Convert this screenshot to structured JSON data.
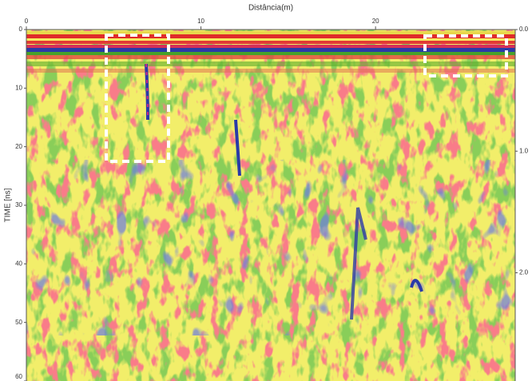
{
  "chart_data": {
    "type": "radargram",
    "title": "Distância(m)",
    "y_label": "TIME [ns]",
    "xlim": [
      0,
      28
    ],
    "xticks": [
      0,
      10,
      20
    ],
    "ylim": [
      0,
      60
    ],
    "yticks": [
      0,
      10,
      20,
      30,
      40,
      50,
      60
    ],
    "y2lim": [
      0,
      2.89
    ],
    "y2ticks": [
      {
        "value": 0,
        "label": "0.0"
      },
      {
        "value": 1,
        "label": "1.0"
      },
      {
        "value": 2,
        "label": "2.0"
      }
    ]
  }
}
